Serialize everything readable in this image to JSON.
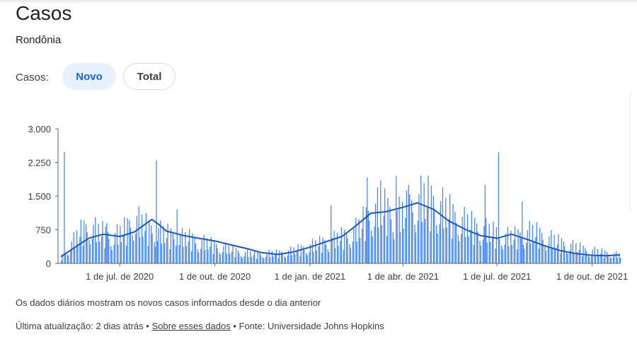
{
  "header": {
    "title": "Casos",
    "region": "Rondônia"
  },
  "toggle": {
    "label": "Casos:",
    "options": [
      "Novo",
      "Total"
    ],
    "selected": "Novo"
  },
  "colors": {
    "bar": "#4285f4",
    "line": "#1a56c4",
    "selected_bg": "#e8f0fe",
    "selected_text": "#1967d2"
  },
  "chart_data": {
    "type": "bar",
    "title": "",
    "xlabel": "",
    "ylabel": "",
    "x_range": [
      "2020-05-05",
      "2021-10-28"
    ],
    "ylim": [
      0,
      3000
    ],
    "y_ticks": [
      0,
      750,
      1500,
      2250,
      3000
    ],
    "y_tick_labels": [
      "0",
      "750",
      "1.500",
      "2.250",
      "3.000"
    ],
    "x_ticks": [
      "2020-07-01",
      "2020-10-01",
      "2021-01-01",
      "2021-04-01",
      "2021-07-01",
      "2021-10-01"
    ],
    "x_tick_labels": [
      "1 de jul. de 2020",
      "1 de out. de 2020",
      "1 de jan. de 2021",
      "1 de abr. de 2021",
      "1 de jul. de 2021",
      "1 de out. de 2021"
    ],
    "grid": false,
    "legend": "none",
    "series": [
      {
        "label_kind": "daily_new_cases",
        "style": "bars",
        "approx_weekly_values": [
          120,
          320,
          520,
          700,
          760,
          660,
          620,
          540,
          600,
          720,
          920,
          820,
          720,
          680,
          620,
          580,
          560,
          520,
          500,
          440,
          420,
          380,
          340,
          300,
          260,
          220,
          200,
          190,
          200,
          200,
          210,
          230,
          260,
          300,
          330,
          380,
          420,
          460,
          500,
          550,
          620,
          700,
          900,
          1080,
          1150,
          1100,
          980,
          1000,
          1120,
          1250,
          1330,
          1300,
          1200,
          1100,
          1000,
          900,
          820,
          760,
          720,
          660,
          600,
          560,
          540,
          560,
          600,
          640,
          600,
          520,
          480,
          420,
          380,
          340,
          300,
          270,
          240,
          220,
          200,
          170,
          150,
          130,
          150,
          180,
          200,
          170
        ],
        "spikes": [
          {
            "date": "2020-05-08",
            "value": 2480
          },
          {
            "date": "2020-06-18",
            "value": 900
          },
          {
            "date": "2020-08-05",
            "value": 2300
          },
          {
            "date": "2020-08-25",
            "value": 1200
          },
          {
            "date": "2021-01-21",
            "value": 1300
          },
          {
            "date": "2021-02-25",
            "value": 1920
          },
          {
            "date": "2021-03-10",
            "value": 1850
          },
          {
            "date": "2021-03-25",
            "value": 1950
          },
          {
            "date": "2021-04-06",
            "value": 1750
          },
          {
            "date": "2021-06-19",
            "value": 1750
          },
          {
            "date": "2021-07-02",
            "value": 2480
          },
          {
            "date": "2021-07-25",
            "value": 1380
          }
        ]
      },
      {
        "label_kind": "seven_day_average",
        "style": "line",
        "x": [
          "2020-05-05",
          "2020-05-20",
          "2020-06-01",
          "2020-06-15",
          "2020-07-01",
          "2020-07-15",
          "2020-08-01",
          "2020-08-07",
          "2020-08-15",
          "2020-09-01",
          "2020-09-15",
          "2020-10-01",
          "2020-10-15",
          "2020-11-01",
          "2020-11-15",
          "2020-12-01",
          "2020-12-15",
          "2021-01-01",
          "2021-01-15",
          "2021-02-01",
          "2021-02-15",
          "2021-03-01",
          "2021-03-15",
          "2021-04-01",
          "2021-04-15",
          "2021-05-01",
          "2021-05-15",
          "2021-06-01",
          "2021-06-15",
          "2021-07-01",
          "2021-07-15",
          "2021-08-01",
          "2021-08-15",
          "2021-09-01",
          "2021-09-15",
          "2021-10-01",
          "2021-10-15",
          "2021-10-28"
        ],
        "y": [
          150,
          380,
          560,
          650,
          600,
          700,
          980,
          880,
          720,
          620,
          560,
          500,
          420,
          330,
          240,
          200,
          250,
          360,
          470,
          600,
          850,
          1120,
          1150,
          1250,
          1350,
          1200,
          950,
          750,
          620,
          560,
          650,
          520,
          400,
          280,
          220,
          180,
          170,
          190
        ]
      }
    ]
  },
  "footer": {
    "note": "Os dados diários mostram os novos casos informados desde o dia anterior",
    "updated": "Última atualização: 2 dias atrás",
    "sep": " • ",
    "about_link": "Sobre esses dados",
    "source": "Fonte: Universidade Johns Hopkins"
  }
}
